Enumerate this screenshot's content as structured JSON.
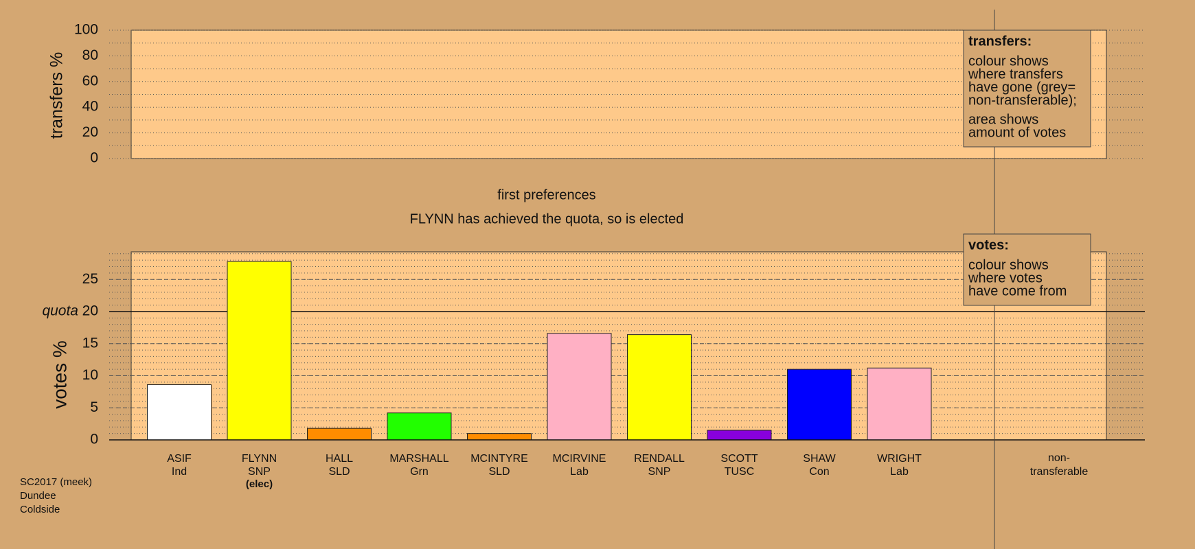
{
  "chart_data": [
    {
      "type": "transfers",
      "y_label": "transfers %",
      "ylim": [
        0,
        100
      ],
      "yticks": [
        0,
        20,
        40,
        60,
        80,
        100
      ],
      "grid_lines": [
        0,
        10,
        20,
        30,
        40,
        50,
        60,
        70,
        80,
        90,
        100
      ],
      "legend": {
        "title": "transfers:",
        "lines": [
          "colour shows",
          "where transfers",
          "have gone (grey=",
          "non-transferable);"
        ],
        "lines2": [
          "area shows",
          "amount of votes"
        ]
      }
    },
    {
      "type": "bar",
      "title": "first preferences",
      "subtitle": "FLYNN has achieved the quota, so is elected",
      "y_label": "votes %",
      "ylim": [
        0,
        29.3
      ],
      "yticks": [
        0,
        5,
        10,
        15,
        20,
        25
      ],
      "grid_lines": [
        1,
        2,
        3,
        4,
        5,
        6,
        7,
        8,
        9,
        10,
        11,
        12,
        13,
        14,
        15,
        16,
        17,
        18,
        19,
        20,
        21,
        22,
        23,
        24,
        25,
        26,
        27,
        28,
        29
      ],
      "quota": 20,
      "quota_label": "quota",
      "categories": [
        "ASIF",
        "FLYNN",
        "HALL",
        "MARSHALL",
        "MCINTYRE",
        "MCIRVINE",
        "RENDALL",
        "SCOTT",
        "SHAW",
        "WRIGHT"
      ],
      "parties": [
        "Ind",
        "SNP",
        "SLD",
        "Grn",
        "SLD",
        "Lab",
        "SNP",
        "TUSC",
        "Con",
        "Lab"
      ],
      "notes": [
        null,
        "(elec)",
        null,
        null,
        null,
        null,
        null,
        null,
        null,
        null
      ],
      "values": [
        8.6,
        27.8,
        1.8,
        4.2,
        1.0,
        16.6,
        16.4,
        1.5,
        11.0,
        11.2
      ],
      "colors": [
        "#ffffff",
        "#ffff00",
        "#ff8c00",
        "#22ff00",
        "#ff8c00",
        "#ffb0c4",
        "#ffff00",
        "#8800dd",
        "#0000ff",
        "#ffb0c4"
      ],
      "nontransferable_label": [
        "non-",
        "transferable"
      ],
      "legend": {
        "title": "votes:",
        "lines": [
          "colour shows",
          "where votes",
          "have come from"
        ]
      }
    }
  ],
  "footer": [
    "SC2017 (meek)",
    "Dundee",
    "Coldside"
  ]
}
